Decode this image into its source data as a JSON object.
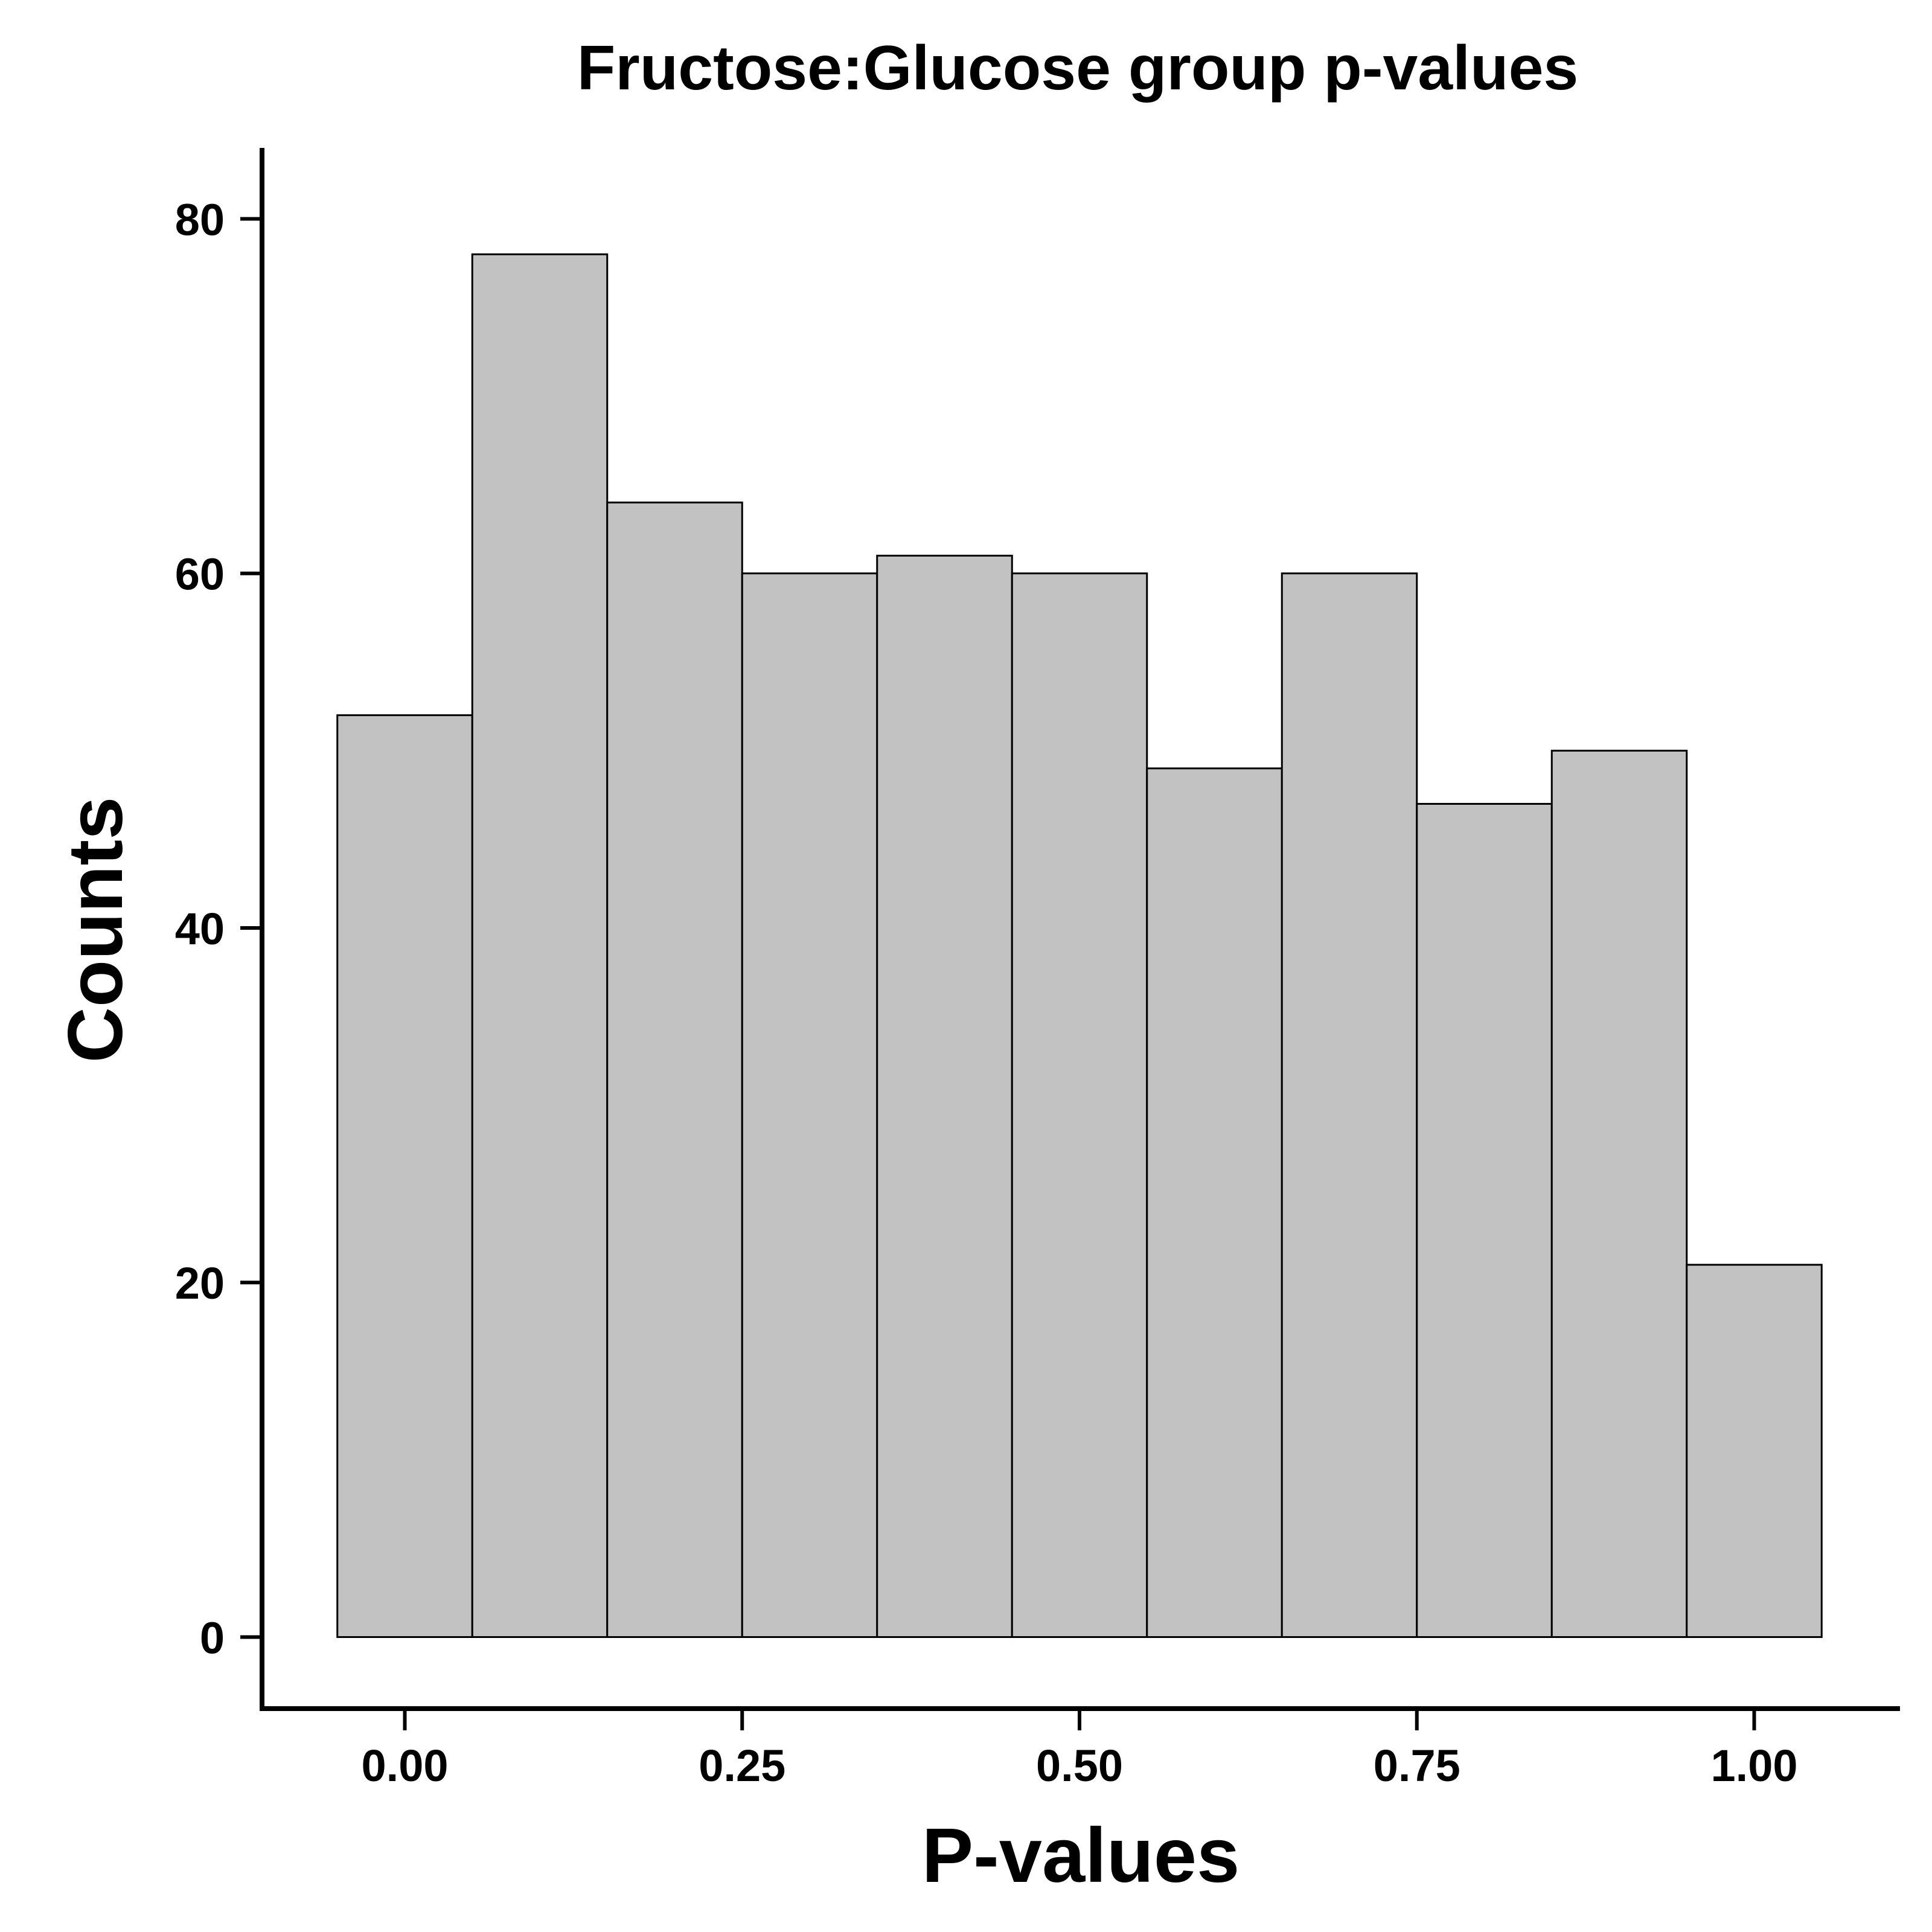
{
  "chart_data": {
    "type": "bar",
    "title": "Fructose:Glucose group p-values",
    "xlabel": "P-values",
    "ylabel": "Counts",
    "bin_width": 0.1,
    "bins": [
      {
        "x_center": 0.0,
        "count": 52
      },
      {
        "x_center": 0.1,
        "count": 78
      },
      {
        "x_center": 0.2,
        "count": 64
      },
      {
        "x_center": 0.3,
        "count": 60
      },
      {
        "x_center": 0.4,
        "count": 61
      },
      {
        "x_center": 0.5,
        "count": 60
      },
      {
        "x_center": 0.6,
        "count": 49
      },
      {
        "x_center": 0.7,
        "count": 60
      },
      {
        "x_center": 0.8,
        "count": 47
      },
      {
        "x_center": 0.9,
        "count": 50
      },
      {
        "x_center": 1.0,
        "count": 21
      }
    ],
    "x_ticks": [
      {
        "value": 0.0,
        "label": "0.00"
      },
      {
        "value": 0.25,
        "label": "0.25"
      },
      {
        "value": 0.5,
        "label": "0.50"
      },
      {
        "value": 0.75,
        "label": "0.75"
      },
      {
        "value": 1.0,
        "label": "1.00"
      }
    ],
    "y_ticks": [
      {
        "value": 0,
        "label": "0"
      },
      {
        "value": 20,
        "label": "20"
      },
      {
        "value": 40,
        "label": "40"
      },
      {
        "value": 60,
        "label": "60"
      },
      {
        "value": 80,
        "label": "80"
      }
    ],
    "xlim": [
      -0.1,
      1.1
    ],
    "ylim": [
      -3.9,
      84
    ],
    "bar_fill": "#c2c2c2",
    "grid": false,
    "legend": "none"
  }
}
